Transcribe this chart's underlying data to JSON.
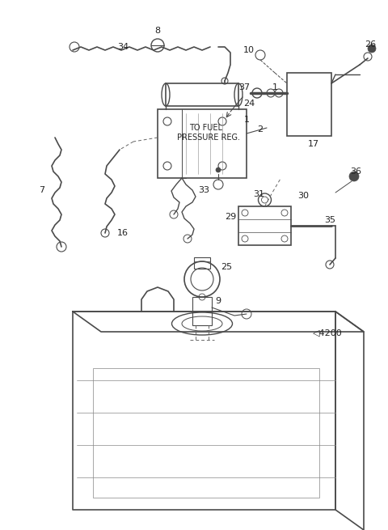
{
  "bg_color": "#ffffff",
  "lc": "#4a4a4a",
  "fig_width": 4.8,
  "fig_height": 6.55,
  "dpi": 100
}
